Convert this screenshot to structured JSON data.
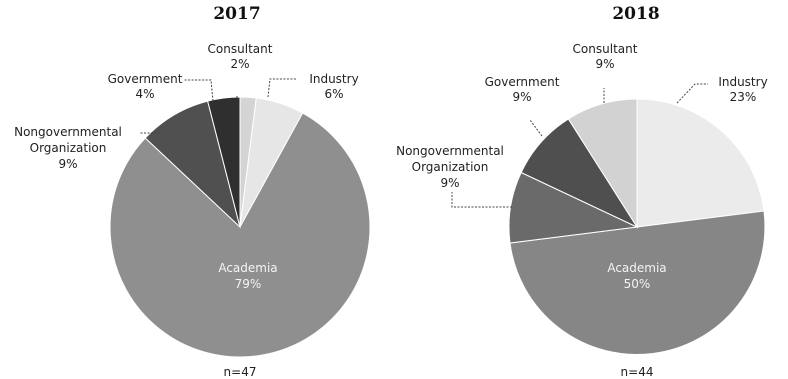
{
  "chart_data": [
    {
      "type": "pie",
      "title": "2017",
      "footnote": "n=47",
      "slices": [
        {
          "label": "Consultant",
          "pct_text": "2%",
          "value": 2,
          "color": "#d4d4d4"
        },
        {
          "label": "Industry",
          "pct_text": "6%",
          "value": 6,
          "color": "#e6e6e6"
        },
        {
          "label": "Academia",
          "pct_text": "79%",
          "value": 79,
          "color": "#8f8f8f"
        },
        {
          "label": "Nongovernmental Organization",
          "pct_text": "9%",
          "value": 9,
          "color": "#505050"
        },
        {
          "label": "Government",
          "pct_text": "4%",
          "value": 4,
          "color": "#2f2f2f"
        }
      ]
    },
    {
      "type": "pie",
      "title": "2018",
      "footnote": "n=44",
      "slices": [
        {
          "label": "Industry",
          "pct_text": "23%",
          "value": 23,
          "color": "#ebebeb"
        },
        {
          "label": "Academia",
          "pct_text": "50%",
          "value": 50,
          "color": "#868686"
        },
        {
          "label": "Nongovernmental Organization",
          "pct_text": "9%",
          "value": 9,
          "color": "#6a6a6a"
        },
        {
          "label": "Government",
          "pct_text": "9%",
          "value": 9,
          "color": "#4f4f4f"
        },
        {
          "label": "Consultant",
          "pct_text": "9%",
          "value": 9,
          "color": "#d2d2d2"
        }
      ]
    }
  ]
}
